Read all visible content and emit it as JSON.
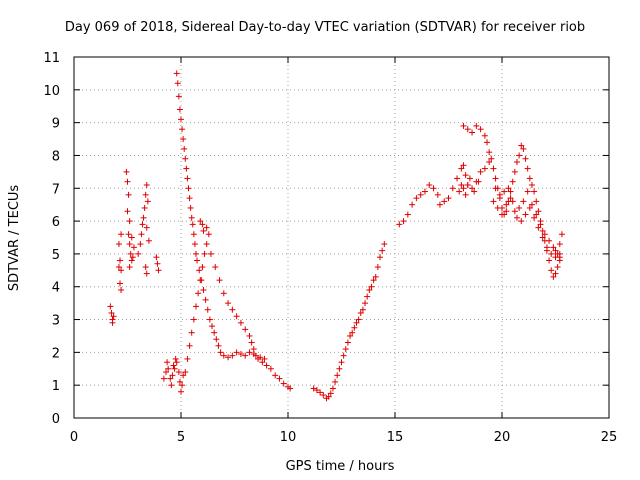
{
  "chart_data": {
    "type": "scatter",
    "title": "Day 069 of 2018, Sidereal Day-to-day VTEC variation (SDTVAR) for receiver riob",
    "xlabel": "GPS time / hours",
    "ylabel": "SDTVAR / TECUs",
    "xlim": [
      0,
      25
    ],
    "ylim": [
      0,
      11
    ],
    "xticks": [
      "0",
      "5",
      "10",
      "15",
      "20",
      "25"
    ],
    "yticks": [
      "0",
      "1",
      "2",
      "3",
      "4",
      "5",
      "6",
      "7",
      "8",
      "9",
      "10",
      "11"
    ],
    "grid": true,
    "marker": "+",
    "series": [
      {
        "name": "SDTVAR",
        "color": "#e00000",
        "points": [
          [
            1.7,
            3.4
          ],
          [
            1.75,
            3.2
          ],
          [
            1.8,
            3.0
          ],
          [
            1.85,
            3.1
          ],
          [
            1.8,
            2.9
          ],
          [
            2.1,
            4.6
          ],
          [
            2.15,
            4.8
          ],
          [
            2.2,
            4.5
          ],
          [
            2.15,
            4.1
          ],
          [
            2.2,
            3.9
          ],
          [
            2.1,
            5.3
          ],
          [
            2.2,
            5.6
          ],
          [
            2.45,
            7.5
          ],
          [
            2.5,
            7.2
          ],
          [
            2.55,
            6.8
          ],
          [
            2.5,
            6.3
          ],
          [
            2.6,
            6.0
          ],
          [
            2.55,
            5.6
          ],
          [
            2.6,
            5.3
          ],
          [
            2.65,
            5.0
          ],
          [
            2.7,
            4.8
          ],
          [
            2.6,
            4.6
          ],
          [
            2.75,
            4.9
          ],
          [
            2.8,
            5.2
          ],
          [
            2.7,
            5.5
          ],
          [
            3.0,
            5.0
          ],
          [
            3.1,
            5.3
          ],
          [
            3.15,
            5.6
          ],
          [
            3.2,
            5.9
          ],
          [
            3.25,
            6.1
          ],
          [
            3.3,
            6.4
          ],
          [
            3.35,
            6.8
          ],
          [
            3.4,
            7.1
          ],
          [
            3.45,
            6.6
          ],
          [
            3.4,
            5.8
          ],
          [
            3.5,
            5.4
          ],
          [
            3.35,
            4.6
          ],
          [
            3.4,
            4.4
          ],
          [
            3.9,
            4.7
          ],
          [
            3.95,
            4.5
          ],
          [
            3.85,
            4.9
          ],
          [
            4.2,
            1.2
          ],
          [
            4.3,
            1.4
          ],
          [
            4.35,
            1.7
          ],
          [
            4.4,
            1.5
          ],
          [
            4.5,
            1.2
          ],
          [
            4.55,
            1.0
          ],
          [
            4.6,
            1.3
          ],
          [
            4.65,
            1.6
          ],
          [
            4.7,
            1.5
          ],
          [
            4.75,
            1.8
          ],
          [
            4.8,
            1.7
          ],
          [
            4.9,
            1.4
          ],
          [
            4.95,
            1.1
          ],
          [
            5.0,
            0.8
          ],
          [
            5.05,
            1.0
          ],
          [
            5.1,
            1.3
          ],
          [
            4.8,
            10.5
          ],
          [
            4.85,
            10.2
          ],
          [
            4.9,
            9.8
          ],
          [
            4.95,
            9.4
          ],
          [
            5.0,
            9.1
          ],
          [
            5.05,
            8.8
          ],
          [
            5.1,
            8.5
          ],
          [
            5.15,
            8.2
          ],
          [
            5.2,
            7.9
          ],
          [
            5.25,
            7.6
          ],
          [
            5.3,
            7.3
          ],
          [
            5.35,
            7.0
          ],
          [
            5.4,
            6.7
          ],
          [
            5.45,
            6.4
          ],
          [
            5.5,
            6.1
          ],
          [
            5.55,
            5.9
          ],
          [
            5.6,
            5.6
          ],
          [
            5.65,
            5.3
          ],
          [
            5.7,
            5.0
          ],
          [
            5.75,
            4.8
          ],
          [
            5.85,
            4.5
          ],
          [
            5.95,
            4.2
          ],
          [
            6.05,
            3.9
          ],
          [
            6.15,
            3.6
          ],
          [
            6.25,
            3.3
          ],
          [
            6.35,
            3.0
          ],
          [
            6.45,
            2.8
          ],
          [
            6.55,
            2.6
          ],
          [
            6.65,
            2.4
          ],
          [
            6.75,
            2.2
          ],
          [
            6.85,
            2.0
          ],
          [
            7.0,
            1.9
          ],
          [
            7.2,
            1.85
          ],
          [
            7.4,
            1.9
          ],
          [
            7.6,
            2.0
          ],
          [
            7.8,
            1.95
          ],
          [
            8.0,
            1.9
          ],
          [
            8.2,
            2.0
          ],
          [
            8.4,
            1.95
          ],
          [
            8.6,
            1.8
          ],
          [
            8.8,
            1.7
          ],
          [
            9.0,
            1.6
          ],
          [
            9.2,
            1.5
          ],
          [
            9.4,
            1.3
          ],
          [
            9.6,
            1.2
          ],
          [
            9.8,
            1.05
          ],
          [
            10.0,
            0.95
          ],
          [
            10.1,
            0.9
          ],
          [
            5.2,
            1.4
          ],
          [
            5.3,
            1.8
          ],
          [
            5.4,
            2.2
          ],
          [
            5.5,
            2.6
          ],
          [
            5.6,
            3.0
          ],
          [
            5.7,
            3.4
          ],
          [
            5.8,
            3.8
          ],
          [
            5.9,
            4.2
          ],
          [
            6.0,
            4.6
          ],
          [
            6.1,
            5.0
          ],
          [
            6.2,
            5.3
          ],
          [
            6.3,
            5.6
          ],
          [
            6.2,
            5.8
          ],
          [
            6.0,
            5.9
          ],
          [
            5.9,
            6.0
          ],
          [
            6.05,
            5.7
          ],
          [
            6.4,
            5.0
          ],
          [
            6.6,
            4.6
          ],
          [
            6.8,
            4.2
          ],
          [
            7.0,
            3.8
          ],
          [
            7.2,
            3.5
          ],
          [
            7.4,
            3.3
          ],
          [
            7.6,
            3.1
          ],
          [
            7.8,
            2.9
          ],
          [
            8.0,
            2.7
          ],
          [
            8.2,
            2.5
          ],
          [
            8.3,
            2.3
          ],
          [
            8.4,
            2.1
          ],
          [
            8.5,
            1.9
          ],
          [
            8.7,
            1.85
          ],
          [
            8.9,
            1.8
          ],
          [
            11.2,
            0.9
          ],
          [
            11.35,
            0.85
          ],
          [
            11.5,
            0.78
          ],
          [
            11.65,
            0.7
          ],
          [
            11.8,
            0.6
          ],
          [
            11.9,
            0.65
          ],
          [
            12.0,
            0.75
          ],
          [
            12.1,
            0.9
          ],
          [
            12.2,
            1.1
          ],
          [
            12.3,
            1.3
          ],
          [
            12.4,
            1.5
          ],
          [
            12.5,
            1.7
          ],
          [
            12.6,
            1.9
          ],
          [
            12.7,
            2.1
          ],
          [
            12.8,
            2.3
          ],
          [
            12.9,
            2.5
          ],
          [
            13.0,
            2.6
          ],
          [
            13.1,
            2.75
          ],
          [
            13.2,
            2.9
          ],
          [
            13.3,
            3.0
          ],
          [
            13.4,
            3.2
          ],
          [
            13.5,
            3.3
          ],
          [
            13.6,
            3.5
          ],
          [
            13.7,
            3.7
          ],
          [
            13.8,
            3.9
          ],
          [
            13.9,
            4.0
          ],
          [
            14.0,
            4.2
          ],
          [
            14.1,
            4.3
          ],
          [
            14.2,
            4.6
          ],
          [
            14.3,
            4.9
          ],
          [
            14.4,
            5.1
          ],
          [
            14.5,
            5.3
          ],
          [
            15.2,
            5.9
          ],
          [
            15.4,
            6.0
          ],
          [
            15.6,
            6.2
          ],
          [
            15.8,
            6.5
          ],
          [
            16.0,
            6.7
          ],
          [
            16.2,
            6.8
          ],
          [
            16.4,
            6.9
          ],
          [
            16.6,
            7.1
          ],
          [
            16.8,
            7.0
          ],
          [
            17.0,
            6.8
          ],
          [
            17.1,
            6.5
          ],
          [
            17.3,
            6.6
          ],
          [
            17.5,
            6.7
          ],
          [
            17.7,
            7.0
          ],
          [
            17.9,
            7.3
          ],
          [
            18.1,
            7.6
          ],
          [
            18.2,
            7.7
          ],
          [
            18.3,
            7.4
          ],
          [
            18.4,
            7.1
          ],
          [
            18.6,
            7.0
          ],
          [
            18.8,
            7.2
          ],
          [
            19.0,
            7.5
          ],
          [
            19.2,
            7.6
          ],
          [
            19.4,
            7.8
          ],
          [
            18.0,
            6.9
          ],
          [
            18.1,
            7.1
          ],
          [
            18.2,
            7.0
          ],
          [
            18.3,
            6.8
          ],
          [
            18.4,
            7.1
          ],
          [
            18.5,
            7.3
          ],
          [
            18.7,
            6.9
          ],
          [
            18.9,
            7.2
          ],
          [
            18.2,
            8.9
          ],
          [
            18.4,
            8.8
          ],
          [
            18.6,
            8.7
          ],
          [
            18.8,
            8.9
          ],
          [
            19.0,
            8.8
          ],
          [
            19.2,
            8.6
          ],
          [
            19.3,
            8.4
          ],
          [
            19.4,
            8.1
          ],
          [
            19.5,
            7.9
          ],
          [
            19.6,
            7.6
          ],
          [
            19.7,
            7.3
          ],
          [
            19.8,
            7.0
          ],
          [
            19.9,
            6.7
          ],
          [
            20.0,
            6.4
          ],
          [
            20.1,
            6.2
          ],
          [
            20.2,
            6.3
          ],
          [
            20.3,
            6.6
          ],
          [
            20.4,
            6.9
          ],
          [
            20.5,
            7.2
          ],
          [
            20.6,
            7.5
          ],
          [
            20.7,
            7.8
          ],
          [
            20.8,
            8.0
          ],
          [
            20.9,
            8.3
          ],
          [
            21.0,
            8.2
          ],
          [
            21.1,
            7.9
          ],
          [
            21.2,
            7.6
          ],
          [
            21.3,
            7.3
          ],
          [
            21.4,
            7.1
          ],
          [
            21.5,
            6.9
          ],
          [
            21.6,
            6.6
          ],
          [
            21.7,
            6.3
          ],
          [
            21.8,
            6.0
          ],
          [
            21.9,
            5.7
          ],
          [
            22.0,
            5.4
          ],
          [
            22.1,
            5.1
          ],
          [
            22.2,
            4.8
          ],
          [
            22.3,
            4.5
          ],
          [
            22.4,
            4.3
          ],
          [
            22.5,
            4.4
          ],
          [
            22.6,
            4.6
          ],
          [
            22.7,
            4.8
          ],
          [
            19.6,
            6.6
          ],
          [
            19.8,
            6.4
          ],
          [
            20.0,
            6.2
          ],
          [
            20.2,
            6.5
          ],
          [
            20.4,
            6.7
          ],
          [
            20.6,
            6.3
          ],
          [
            20.8,
            6.4
          ],
          [
            21.0,
            6.6
          ],
          [
            21.2,
            6.9
          ],
          [
            21.4,
            6.5
          ],
          [
            21.6,
            6.2
          ],
          [
            21.8,
            5.9
          ],
          [
            22.0,
            5.6
          ],
          [
            22.2,
            5.4
          ],
          [
            22.4,
            5.2
          ],
          [
            22.6,
            5.0
          ],
          [
            22.7,
            5.3
          ],
          [
            22.8,
            5.6
          ],
          [
            22.7,
            4.9
          ],
          [
            22.5,
            5.1
          ],
          [
            19.7,
            7.0
          ],
          [
            19.9,
            6.8
          ],
          [
            20.1,
            6.9
          ],
          [
            20.3,
            7.0
          ],
          [
            20.5,
            6.6
          ],
          [
            20.7,
            6.1
          ],
          [
            20.9,
            6.0
          ],
          [
            21.1,
            6.2
          ],
          [
            21.3,
            6.4
          ],
          [
            21.5,
            6.1
          ],
          [
            21.7,
            5.8
          ],
          [
            21.9,
            5.5
          ],
          [
            22.1,
            5.2
          ],
          [
            22.3,
            5.0
          ],
          [
            22.5,
            4.9
          ],
          [
            22.7,
            5.0
          ]
        ]
      }
    ]
  }
}
